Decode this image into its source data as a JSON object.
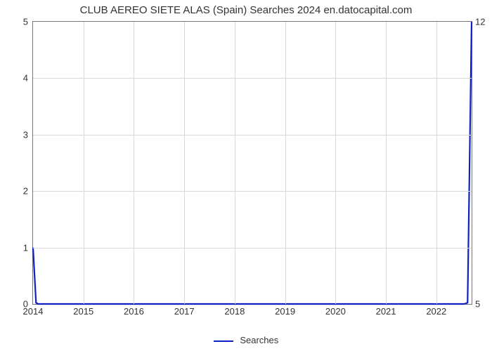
{
  "chart": {
    "type": "line",
    "title": "CLUB AEREO SIETE ALAS (Spain) Searches 2024 en.datocapital.com",
    "title_fontsize": 15,
    "background_color": "#ffffff",
    "grid_color": "#d9d9d9",
    "axis_color": "#777777",
    "text_color": "#333333",
    "x": {
      "min": 2014,
      "max": 2022.7,
      "ticks": [
        2014,
        2015,
        2016,
        2017,
        2018,
        2019,
        2020,
        2021,
        2022
      ],
      "label_fontsize": 13
    },
    "y_left": {
      "min": 0,
      "max": 5,
      "ticks": [
        0,
        1,
        2,
        3,
        4,
        5
      ],
      "label_fontsize": 13
    },
    "y_right": {
      "min": 5,
      "max": 12,
      "ticks": [
        5,
        12
      ],
      "label_fontsize": 13
    },
    "series": [
      {
        "name": "Searches",
        "color": "#1021c4",
        "line_width": 2.2,
        "xs": [
          2014,
          2014.06,
          2014.1,
          2022.55,
          2022.62,
          2022.7
        ],
        "ys": [
          1.0,
          0.02,
          0.0,
          0.0,
          0.02,
          5.0
        ]
      }
    ],
    "legend": {
      "label": "Searches",
      "color": "#1021c4",
      "fontsize": 13
    }
  }
}
